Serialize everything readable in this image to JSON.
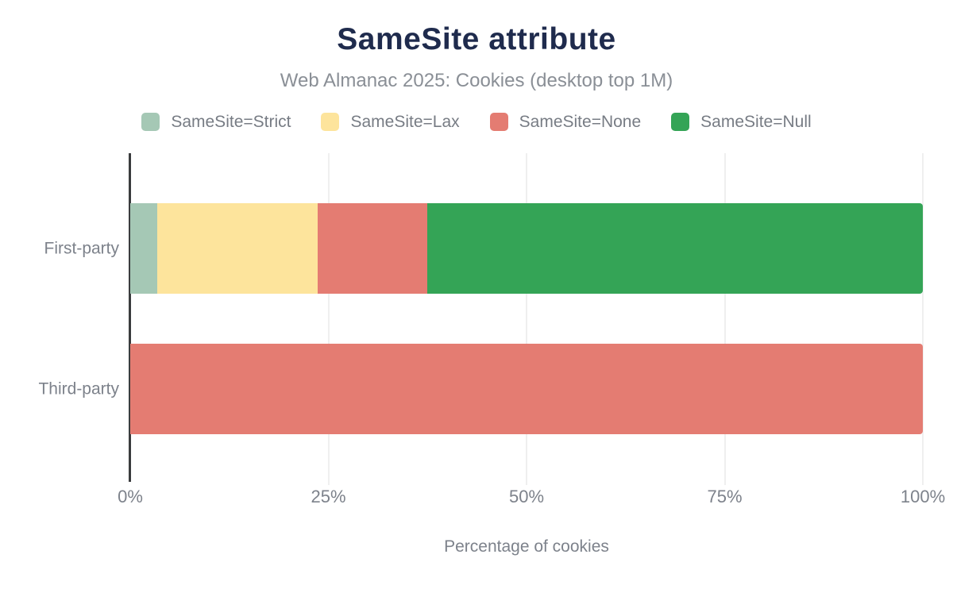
{
  "colors": {
    "title": "#1f2b4d",
    "subtitle_text": "#8a8f96",
    "axis_text": "#7d828b",
    "legend_text": "#777c84",
    "axis_line": "#3a3c3e",
    "gridline": "#efefef",
    "background": "#ffffff"
  },
  "chart_data": {
    "type": "bar",
    "orientation": "horizontal",
    "stacked": true,
    "title": "SameSite attribute",
    "subtitle": "Web Almanac 2025: Cookies (desktop top 1M)",
    "xlabel": "Percentage of cookies",
    "ylabel": "",
    "categories": [
      "First-party",
      "Third-party"
    ],
    "series": [
      {
        "name": "SameSite=Strict",
        "color": "#a5c8b5",
        "values": [
          3.4,
          0
        ]
      },
      {
        "name": "SameSite=Lax",
        "color": "#fde49c",
        "values": [
          20.2,
          0
        ]
      },
      {
        "name": "SameSite=None",
        "color": "#e47c72",
        "values": [
          13.9,
          100
        ]
      },
      {
        "name": "SameSite=Null",
        "color": "#34a456",
        "values": [
          62.5,
          0
        ]
      }
    ],
    "xlim": [
      0,
      100
    ],
    "x_ticks": [
      "0%",
      "25%",
      "50%",
      "75%",
      "100%"
    ],
    "x_tick_values": [
      0,
      25,
      50,
      75,
      100
    ],
    "grid": true,
    "legend_position": "top"
  }
}
